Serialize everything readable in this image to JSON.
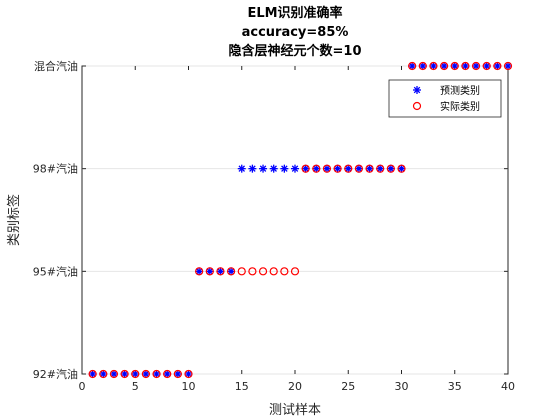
{
  "chart_data": {
    "type": "scatter",
    "title_lines": [
      "ELM识别准确率",
      "accuracy=85%",
      "隐含层神经元个数=10"
    ],
    "xlabel": "测试样本",
    "ylabel": "类别标签",
    "xlim": [
      0,
      40
    ],
    "ylim": [
      1,
      4
    ],
    "x_ticks": [
      0,
      5,
      10,
      15,
      20,
      25,
      30,
      35,
      40
    ],
    "y_ticks": [
      1,
      2,
      3,
      4
    ],
    "y_tick_labels": [
      "92#汽油",
      "95#汽油",
      "98#汽油",
      "混合汽油"
    ],
    "grid": "horizontal",
    "legend_position": "top-right",
    "x": [
      1,
      2,
      3,
      4,
      5,
      6,
      7,
      8,
      9,
      10,
      11,
      12,
      13,
      14,
      15,
      16,
      17,
      18,
      19,
      20,
      21,
      22,
      23,
      24,
      25,
      26,
      27,
      28,
      29,
      30,
      31,
      32,
      33,
      34,
      35,
      36,
      37,
      38,
      39,
      40
    ],
    "series": [
      {
        "name": "预测类别",
        "marker": "asterisk",
        "color": "#0000ff",
        "values": [
          1,
          1,
          1,
          1,
          1,
          1,
          1,
          1,
          1,
          1,
          2,
          2,
          2,
          2,
          3,
          3,
          3,
          3,
          3,
          3,
          3,
          3,
          3,
          3,
          3,
          3,
          3,
          3,
          3,
          3,
          4,
          4,
          4,
          4,
          4,
          4,
          4,
          4,
          4,
          4
        ]
      },
      {
        "name": "实际类别",
        "marker": "circle",
        "color": "#ff0000",
        "values": [
          1,
          1,
          1,
          1,
          1,
          1,
          1,
          1,
          1,
          1,
          2,
          2,
          2,
          2,
          2,
          2,
          2,
          2,
          2,
          2,
          3,
          3,
          3,
          3,
          3,
          3,
          3,
          3,
          3,
          3,
          4,
          4,
          4,
          4,
          4,
          4,
          4,
          4,
          4,
          4
        ]
      }
    ]
  }
}
